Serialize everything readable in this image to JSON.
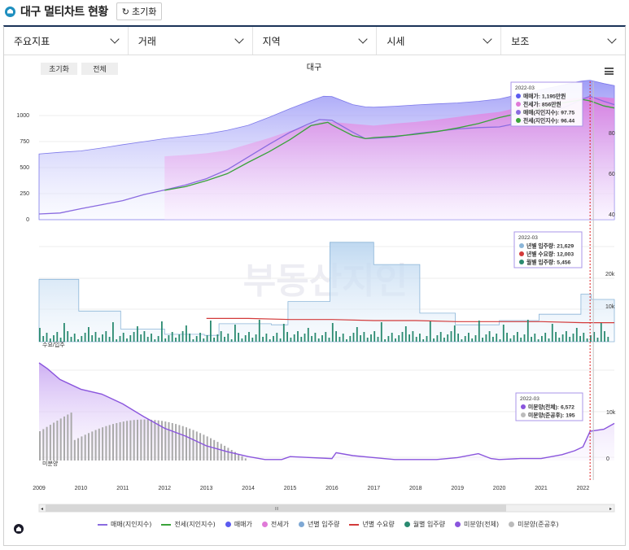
{
  "header": {
    "title": "대구 멀티차트 현황",
    "reset_label": "초기화"
  },
  "filters": [
    {
      "label": "주요지표"
    },
    {
      "label": "거래"
    },
    {
      "label": "지역"
    },
    {
      "label": "시세"
    },
    {
      "label": "보조"
    }
  ],
  "chart_buttons": {
    "reset": "초기화",
    "all": "전체"
  },
  "watermark": "부동산지인",
  "chart_data": {
    "type": "line",
    "title": "대구",
    "x_ticks": [
      "2009",
      "2010",
      "2011",
      "2012",
      "2013",
      "2014",
      "2015",
      "2016",
      "2017",
      "2018",
      "2019",
      "2020",
      "2021",
      "2022"
    ],
    "x_range": [
      2009.0,
      2022.75
    ],
    "cursor_date": "2022-03",
    "panels": [
      {
        "id": "price",
        "left_ticks": [
          "1000",
          "750",
          "500",
          "250",
          "0"
        ],
        "right_ticks": [
          "80",
          "60",
          "40"
        ],
        "series": [
          {
            "name": "매매(지인지수)",
            "color": "#8a6be0",
            "points": [
              [
                2009,
                17
              ],
              [
                2009.5,
                20
              ],
              [
                2010,
                33
              ],
              [
                2010.5,
                45
              ],
              [
                2011,
                57
              ],
              [
                2011.5,
                75
              ],
              [
                2012,
                89
              ],
              [
                2012.5,
                104
              ],
              [
                2013,
                123
              ],
              [
                2013.5,
                150
              ],
              [
                2014,
                188
              ],
              [
                2014.5,
                226
              ],
              [
                2015,
                262
              ],
              [
                2015.4,
                285
              ],
              [
                2015.7,
                300
              ],
              [
                2016,
                298
              ],
              [
                2016.5,
                262
              ],
              [
                2016.8,
                243
              ],
              [
                2017,
                244
              ],
              [
                2017.5,
                248
              ],
              [
                2018,
                258
              ],
              [
                2018.5,
                265
              ],
              [
                2019,
                272
              ],
              [
                2019.5,
                276
              ],
              [
                2020,
                278
              ],
              [
                2020.5,
                291
              ],
              [
                2021,
                312
              ],
              [
                2021.5,
                334
              ],
              [
                2021.8,
                350
              ],
              [
                2022,
                362
              ],
              [
                2022.17,
                370
              ],
              [
                2022.5,
                355
              ],
              [
                2022.75,
                345
              ]
            ]
          },
          {
            "name": "전세(지인지수)",
            "color": "#3aa33a",
            "points": [
              [
                2012,
                88
              ],
              [
                2012.5,
                99
              ],
              [
                2013,
                117
              ],
              [
                2013.5,
                138
              ],
              [
                2014,
                172
              ],
              [
                2014.5,
                204
              ],
              [
                2015,
                240
              ],
              [
                2015.5,
                282
              ],
              [
                2015.9,
                292
              ],
              [
                2016,
                284
              ],
              [
                2016.5,
                252
              ],
              [
                2016.8,
                243
              ],
              [
                2017,
                246
              ],
              [
                2017.5,
                250
              ],
              [
                2018,
                256
              ],
              [
                2018.5,
                264
              ],
              [
                2019,
                275
              ],
              [
                2019.5,
                288
              ],
              [
                2020,
                306
              ],
              [
                2020.5,
                320
              ],
              [
                2021,
                335
              ],
              [
                2021.5,
                350
              ],
              [
                2022,
                360
              ],
              [
                2022.17,
                356
              ],
              [
                2022.5,
                341
              ],
              [
                2022.75,
                335
              ]
            ]
          }
        ],
        "areas": [
          {
            "name": "매매가",
            "color": "#7d79ea",
            "points": [
              [
                2009,
                197
              ],
              [
                2009.5,
                202
              ],
              [
                2010,
                206
              ],
              [
                2010.5,
                215
              ],
              [
                2011,
                225
              ],
              [
                2011.5,
                234
              ],
              [
                2012,
                243
              ],
              [
                2012.5,
                250
              ],
              [
                2013,
                257
              ],
              [
                2013.5,
                268
              ],
              [
                2014,
                283
              ],
              [
                2014.5,
                307
              ],
              [
                2015,
                333
              ],
              [
                2015.5,
                357
              ],
              [
                2015.8,
                370
              ],
              [
                2016,
                369
              ],
              [
                2016.5,
                345
              ],
              [
                2016.8,
                338
              ],
              [
                2017,
                337
              ],
              [
                2017.5,
                340
              ],
              [
                2018,
                344
              ],
              [
                2018.5,
                347
              ],
              [
                2019,
                350
              ],
              [
                2019.5,
                355
              ],
              [
                2020,
                362
              ],
              [
                2020.5,
                376
              ],
              [
                2021,
                390
              ],
              [
                2021.5,
                403
              ],
              [
                2021.8,
                412
              ],
              [
                2022,
                416
              ],
              [
                2022.17,
                418
              ],
              [
                2022.5,
                408
              ],
              [
                2022.75,
                402
              ]
            ]
          },
          {
            "name": "전세가",
            "color": "#d97ee0",
            "points": [
              [
                2012,
                190
              ],
              [
                2012.5,
                194
              ],
              [
                2013,
                199
              ],
              [
                2013.5,
                208
              ],
              [
                2014,
                226
              ],
              [
                2014.5,
                245
              ],
              [
                2015,
                266
              ],
              [
                2015.5,
                285
              ],
              [
                2015.8,
                295
              ],
              [
                2016,
                293
              ],
              [
                2016.5,
                287
              ],
              [
                2017,
                282
              ],
              [
                2017.5,
                288
              ],
              [
                2018,
                293
              ],
              [
                2018.5,
                300
              ],
              [
                2019,
                308
              ],
              [
                2019.5,
                316
              ],
              [
                2020,
                323
              ],
              [
                2020.5,
                337
              ],
              [
                2021,
                350
              ],
              [
                2021.5,
                361
              ],
              [
                2022,
                366
              ],
              [
                2022.17,
                368
              ],
              [
                2022.5,
                367
              ],
              [
                2022.75,
                364
              ]
            ]
          }
        ],
        "tooltip": {
          "date": "2022-03",
          "rows": [
            {
              "label": "매매가: 1,195만원",
              "color": "#5b5bf0"
            },
            {
              "label": "전세가: 856만원",
              "color": "#e07ad8"
            },
            {
              "label": "매매(지인지수): 97.75",
              "color": "#8a6be0"
            },
            {
              "label": "전세(지인지수): 96.44",
              "color": "#3aa33a"
            }
          ]
        }
      },
      {
        "id": "supply",
        "right_ticks": [
          "20k",
          "10k"
        ],
        "label": "수요/입주",
        "series": [
          {
            "name": "년별 입주량",
            "color": "#8bb5d8",
            "steps": [
              [
                2009,
                0.59
              ],
              [
                2009.95,
                0.29
              ],
              [
                2010.95,
                0.12
              ],
              [
                2012,
                0.07
              ],
              [
                2012.95,
                0.06
              ],
              [
                2013.3,
                0.17
              ],
              [
                2014,
                0.17
              ],
              [
                2014.55,
                0.16
              ],
              [
                2014.95,
                0.38
              ],
              [
                2015.95,
                0.94
              ],
              [
                2017,
                0.73
              ],
              [
                2018.1,
                0.27
              ],
              [
                2018.95,
                0.16
              ],
              [
                2020,
                0.2
              ],
              [
                2020.95,
                0.26
              ],
              [
                2021.95,
                0.45
              ],
              [
                2022.2,
                0.4
              ]
            ]
          },
          {
            "name": "년별 수요량",
            "color": "#d33a3a",
            "points": [
              [
                2013,
                0.22
              ],
              [
                2014,
                0.22
              ],
              [
                2015,
                0.21
              ],
              [
                2016,
                0.21
              ],
              [
                2017,
                0.2
              ],
              [
                2018,
                0.2
              ],
              [
                2019,
                0.19
              ],
              [
                2020,
                0.19
              ],
              [
                2021,
                0.19
              ],
              [
                2022,
                0.18
              ],
              [
                2022.75,
                0.18
              ]
            ]
          }
        ],
        "tooltip": {
          "date": "2022-03",
          "rows": [
            {
              "label": "년별 입주량: 21,629",
              "color": "#8bb5d8"
            },
            {
              "label": "년별 수요량: 12,003",
              "color": "#d33a3a"
            },
            {
              "label": "월별 입주량: 5,456",
              "color": "#2a8a70"
            }
          ]
        }
      },
      {
        "id": "unsold",
        "right_ticks": [
          "10k",
          "0"
        ],
        "label": "미분양",
        "series": [
          {
            "name": "미분양(전체)",
            "color": "#8a55dd",
            "points": [
              [
                2009,
                1.0
              ],
              [
                2009.2,
                0.94
              ],
              [
                2009.5,
                0.83
              ],
              [
                2010,
                0.73
              ],
              [
                2010.5,
                0.68
              ],
              [
                2011,
                0.58
              ],
              [
                2011.5,
                0.45
              ],
              [
                2012,
                0.33
              ],
              [
                2012.5,
                0.25
              ],
              [
                2013,
                0.15
              ],
              [
                2013.5,
                0.09
              ],
              [
                2014,
                0.04
              ],
              [
                2014.4,
                0.01
              ],
              [
                2014.8,
                0.01
              ],
              [
                2015,
                0.04
              ],
              [
                2015.5,
                0.03
              ],
              [
                2016,
                0.02
              ],
              [
                2016.1,
                0.08
              ],
              [
                2016.5,
                0.05
              ],
              [
                2017,
                0.03
              ],
              [
                2017.5,
                0.01
              ],
              [
                2018,
                0.01
              ],
              [
                2018.5,
                0.01
              ],
              [
                2019,
                0.03
              ],
              [
                2019.5,
                0.07
              ],
              [
                2019.8,
                0.02
              ],
              [
                2020,
                0.01
              ],
              [
                2020.5,
                0.02
              ],
              [
                2021,
                0.02
              ],
              [
                2021.5,
                0.06
              ],
              [
                2021.8,
                0.1
              ],
              [
                2022,
                0.14
              ],
              [
                2022.17,
                0.3
              ],
              [
                2022.5,
                0.32
              ],
              [
                2022.75,
                0.38
              ]
            ]
          }
        ],
        "tooltip": {
          "date": "2022-03",
          "rows": [
            {
              "label": "미분양(전체): 6,572",
              "color": "#8a55dd"
            },
            {
              "label": "미분양(준공후): 195",
              "color": "#bbbbbb"
            }
          ]
        }
      }
    ],
    "legend": [
      {
        "name": "매매(지인지수)",
        "color": "#8a6be0",
        "kind": "line"
      },
      {
        "name": "전세(지인지수)",
        "color": "#3aa33a",
        "kind": "line"
      },
      {
        "name": "매매가",
        "color": "#5b5bf0",
        "kind": "dot"
      },
      {
        "name": "전세가",
        "color": "#e07ad8",
        "kind": "dot"
      },
      {
        "name": "년별 입주량",
        "color": "#7ea8d4",
        "kind": "dot"
      },
      {
        "name": "년별 수요량",
        "color": "#d33a3a",
        "kind": "line"
      },
      {
        "name": "월별 입주량",
        "color": "#2a8a70",
        "kind": "dot"
      },
      {
        "name": "미분양(전체)",
        "color": "#8a55dd",
        "kind": "dot"
      },
      {
        "name": "미분양(준공후)",
        "color": "#bbbbbb",
        "kind": "dot"
      }
    ]
  }
}
